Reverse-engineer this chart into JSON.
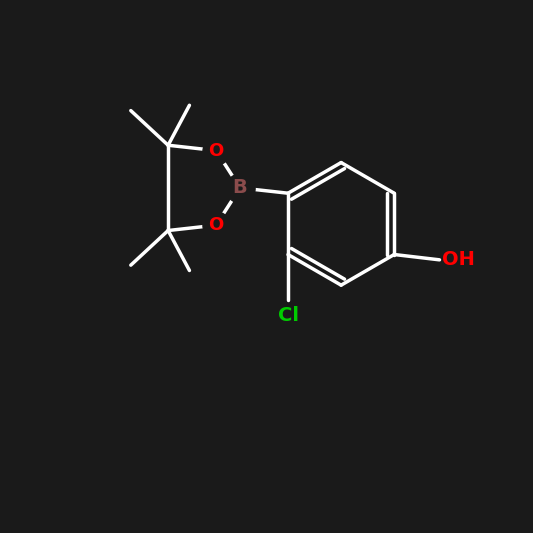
{
  "background_color": "#1a1a1a",
  "atom_colors": {
    "C": "#ffffff",
    "O": "#ff0000",
    "B": "#8b4c4c",
    "Cl": "#00cc00",
    "H": "#ffffff"
  },
  "bond_color": "#ffffff",
  "bond_width": 2.5,
  "figsize": [
    5.33,
    5.33
  ],
  "dpi": 100
}
